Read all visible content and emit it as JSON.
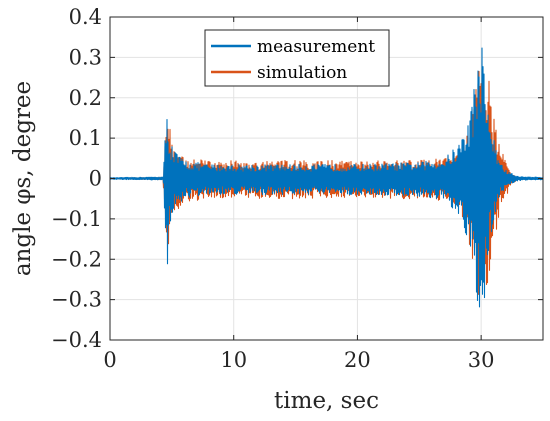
{
  "chart_data": {
    "type": "line",
    "xlabel": "time, sec",
    "ylabel": "angle φs, degree",
    "xlim": [
      0,
      35
    ],
    "ylim": [
      -0.4,
      0.4
    ],
    "grid": true,
    "legend_position": "top-center",
    "xticks": [
      "0",
      "10",
      "20",
      "30"
    ],
    "yticks": [
      "−0.4",
      "−0.3",
      "−0.2",
      "−0.1",
      "0",
      "0.1",
      "0.2",
      "0.3",
      "0.4"
    ],
    "series": [
      {
        "name": "measurement",
        "color": "#0072BD",
        "envelope": {
          "x": [
            0,
            4.3,
            4.45,
            4.6,
            4.8,
            5.2,
            6.0,
            8.0,
            10,
            15,
            20,
            25,
            27,
            28,
            28.7,
            29.3,
            29.7,
            30.0,
            30.2,
            30.5,
            30.9,
            31.3,
            32.0,
            33,
            35
          ],
          "upper": [
            0.002,
            0.004,
            0.1,
            0.17,
            0.11,
            0.07,
            0.045,
            0.035,
            0.035,
            0.035,
            0.035,
            0.04,
            0.05,
            0.08,
            0.12,
            0.2,
            0.3,
            0.36,
            0.3,
            0.2,
            0.12,
            0.06,
            0.02,
            0.005,
            0.003
          ],
          "lower": [
            -0.002,
            -0.004,
            -0.12,
            -0.24,
            -0.13,
            -0.08,
            -0.05,
            -0.04,
            -0.04,
            -0.04,
            -0.04,
            -0.045,
            -0.055,
            -0.09,
            -0.14,
            -0.22,
            -0.32,
            -0.37,
            -0.33,
            -0.22,
            -0.13,
            -0.06,
            -0.02,
            -0.005,
            -0.003
          ]
        }
      },
      {
        "name": "simulation",
        "color": "#D95319",
        "envelope": {
          "x": [
            0,
            4.3,
            4.45,
            4.6,
            4.8,
            5.2,
            6.0,
            8.0,
            10,
            15,
            20,
            25,
            27,
            28,
            28.7,
            29.3,
            29.7,
            30.0,
            30.3,
            30.6,
            31.0,
            31.4,
            31.9,
            32.5,
            33,
            35
          ],
          "upper": [
            0.001,
            0.003,
            0.14,
            0.205,
            0.13,
            0.075,
            0.05,
            0.045,
            0.045,
            0.045,
            0.045,
            0.045,
            0.05,
            0.07,
            0.1,
            0.18,
            0.26,
            0.32,
            0.33,
            0.25,
            0.16,
            0.09,
            0.05,
            0.01,
            0.003,
            0.001
          ],
          "lower": [
            -0.001,
            -0.003,
            -0.15,
            -0.245,
            -0.16,
            -0.09,
            -0.06,
            -0.05,
            -0.05,
            -0.05,
            -0.05,
            -0.05,
            -0.055,
            -0.075,
            -0.11,
            -0.2,
            -0.28,
            -0.33,
            -0.34,
            -0.27,
            -0.17,
            -0.1,
            -0.06,
            -0.012,
            -0.003,
            -0.001
          ]
        }
      }
    ]
  }
}
